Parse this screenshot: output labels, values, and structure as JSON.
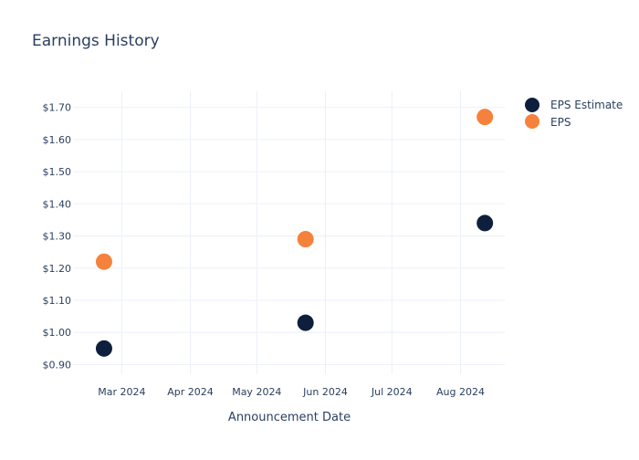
{
  "chart_data": {
    "type": "scatter",
    "title": "Earnings History",
    "xlabel": "Announcement Date",
    "ylabel": "",
    "x_ticks": [
      "Mar 2024",
      "Apr 2024",
      "May 2024",
      "Jun 2024",
      "Jul 2024",
      "Aug 2024"
    ],
    "y_ticks": [
      "$0.90",
      "$1.00",
      "$1.10",
      "$1.20",
      "$1.30",
      "$1.40",
      "$1.50",
      "$1.60",
      "$1.70"
    ],
    "ylim": [
      0.87,
      1.75
    ],
    "xlim": [
      "2024-02-08",
      "2024-08-21"
    ],
    "grid": true,
    "legend_position": "top-right",
    "series": [
      {
        "name": "EPS Estimate",
        "color": "#0e1f3d",
        "points": [
          {
            "x": "2024-02-22",
            "y": 0.95
          },
          {
            "x": "2024-05-23",
            "y": 1.03
          },
          {
            "x": "2024-08-12",
            "y": 1.34
          }
        ]
      },
      {
        "name": "EPS",
        "color": "#f5823c",
        "points": [
          {
            "x": "2024-02-22",
            "y": 1.22
          },
          {
            "x": "2024-05-23",
            "y": 1.29
          },
          {
            "x": "2024-08-12",
            "y": 1.67
          }
        ]
      }
    ]
  }
}
